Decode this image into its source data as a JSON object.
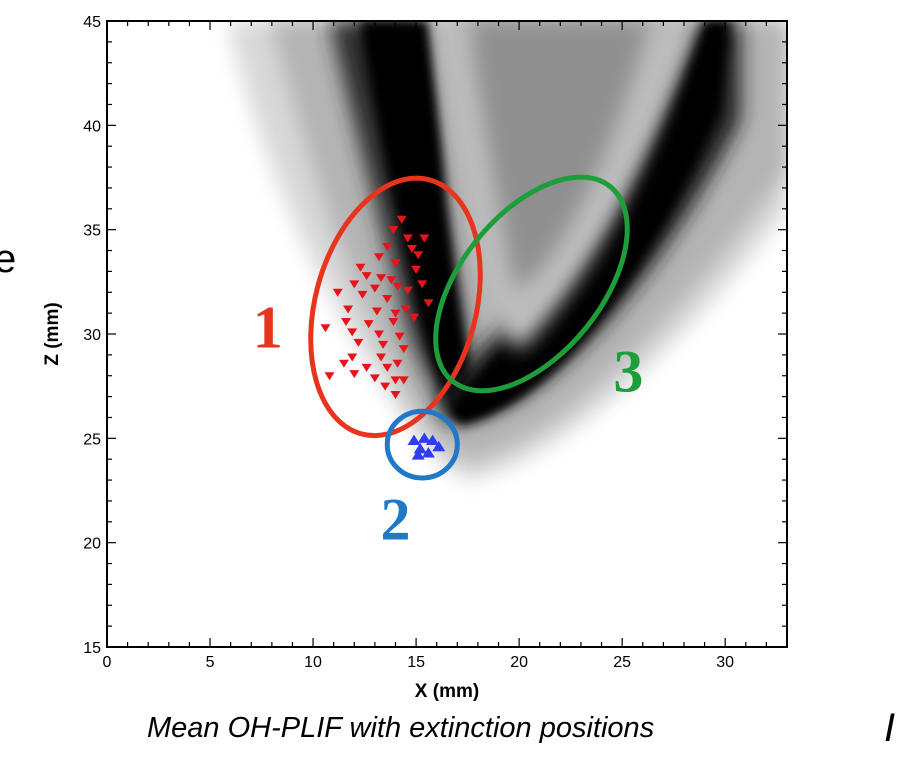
{
  "chart_data": {
    "type": "scatter",
    "title": "",
    "xlabel": "X (mm)",
    "ylabel": "Z (mm)",
    "xlim": [
      0,
      33
    ],
    "ylim": [
      15,
      45
    ],
    "xticks": [
      0,
      5,
      10,
      15,
      20,
      25,
      30
    ],
    "yticks": [
      15,
      20,
      25,
      30,
      35,
      40,
      45
    ],
    "background": "Mean OH-PLIF field (grayscale)",
    "series": [
      {
        "marker": "triangle-down",
        "color": "#e8141c",
        "points": [
          [
            14.3,
            35.5
          ],
          [
            13.9,
            35.0
          ],
          [
            14.6,
            34.6
          ],
          [
            15.4,
            34.6
          ],
          [
            13.6,
            34.2
          ],
          [
            14.8,
            34.1
          ],
          [
            15.1,
            33.8
          ],
          [
            13.2,
            33.7
          ],
          [
            12.3,
            33.2
          ],
          [
            14.0,
            33.4
          ],
          [
            15.0,
            33.1
          ],
          [
            12.6,
            32.8
          ],
          [
            13.3,
            32.7
          ],
          [
            13.8,
            32.6
          ],
          [
            14.1,
            32.3
          ],
          [
            12.0,
            32.4
          ],
          [
            13.0,
            32.2
          ],
          [
            14.6,
            32.1
          ],
          [
            15.3,
            32.4
          ],
          [
            11.2,
            32.0
          ],
          [
            12.4,
            31.9
          ],
          [
            13.6,
            31.7
          ],
          [
            14.5,
            31.2
          ],
          [
            15.6,
            31.5
          ],
          [
            11.7,
            31.2
          ],
          [
            13.1,
            31.1
          ],
          [
            14.0,
            31.0
          ],
          [
            14.9,
            30.8
          ],
          [
            11.6,
            30.6
          ],
          [
            12.7,
            30.5
          ],
          [
            13.9,
            30.6
          ],
          [
            10.6,
            30.3
          ],
          [
            11.9,
            30.1
          ],
          [
            13.2,
            30.0
          ],
          [
            14.2,
            29.9
          ],
          [
            12.2,
            29.6
          ],
          [
            13.4,
            29.5
          ],
          [
            14.4,
            29.3
          ],
          [
            11.9,
            28.9
          ],
          [
            13.3,
            28.9
          ],
          [
            14.1,
            28.6
          ],
          [
            11.5,
            28.6
          ],
          [
            12.6,
            28.4
          ],
          [
            13.6,
            28.4
          ],
          [
            10.8,
            28.0
          ],
          [
            12.0,
            28.1
          ],
          [
            13.0,
            27.9
          ],
          [
            14.0,
            27.8
          ],
          [
            13.5,
            27.5
          ],
          [
            14.4,
            27.8
          ],
          [
            14.0,
            27.1
          ]
        ]
      },
      {
        "marker": "triangle-up",
        "color": "#2f3cf0",
        "points": [
          [
            14.9,
            24.9
          ],
          [
            15.4,
            25.0
          ],
          [
            15.8,
            24.9
          ],
          [
            15.2,
            24.5
          ],
          [
            15.6,
            24.3
          ],
          [
            15.1,
            24.2
          ],
          [
            16.1,
            24.6
          ]
        ]
      }
    ],
    "annotations": [
      {
        "label": "1",
        "color": "#e8341c",
        "shape": "ellipse",
        "cx": 14.0,
        "cy": 31.3,
        "rx": 3.9,
        "ry": 6.3,
        "rotate": 15
      },
      {
        "label": "2",
        "color": "#1f78c8",
        "shape": "circle",
        "cx": 15.3,
        "cy": 24.7,
        "rx": 1.7,
        "ry": 1.6,
        "rotate": 0
      },
      {
        "label": "3",
        "color": "#1e9e3a",
        "shape": "ellipse",
        "cx": 20.6,
        "cy": 32.4,
        "rx": 3.4,
        "ry": 6.0,
        "rotate": 39
      }
    ]
  },
  "caption": "Mean OH-PLIF with extinction positions",
  "fragments": {
    "left_edge": "e",
    "bottom_right": "I"
  }
}
